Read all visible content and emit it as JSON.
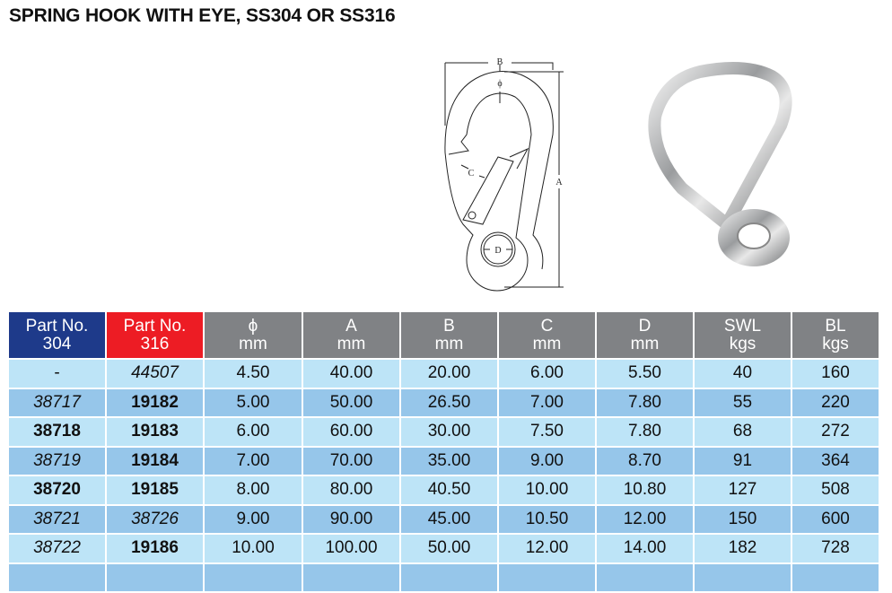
{
  "title": "SPRING HOOK WITH EYE, SS304 OR SS316",
  "diagram": {
    "labels": {
      "b": "B",
      "phi": "ϕ",
      "a": "A",
      "c": "C",
      "d": "D"
    }
  },
  "colors": {
    "header_304": "#1e3a8a",
    "header_316": "#ed1c24",
    "header_other": "#808285",
    "row_light": "#bde4f7",
    "row_dark": "#96c6ea"
  },
  "table": {
    "headers": [
      {
        "line1": "Part No.",
        "line2": "304"
      },
      {
        "line1": "Part No.",
        "line2": "316"
      },
      {
        "line1": "ϕ",
        "line2": "mm"
      },
      {
        "line1": "A",
        "line2": "mm"
      },
      {
        "line1": "B",
        "line2": "mm"
      },
      {
        "line1": "C",
        "line2": "mm"
      },
      {
        "line1": "D",
        "line2": "mm"
      },
      {
        "line1": "SWL",
        "line2": "kgs"
      },
      {
        "line1": "BL",
        "line2": "kgs"
      }
    ],
    "rows": [
      [
        "-",
        "44507",
        "4.50",
        "40.00",
        "20.00",
        "6.00",
        "5.50",
        "40",
        "160"
      ],
      [
        "38717",
        "19182",
        "5.00",
        "50.00",
        "26.50",
        "7.00",
        "7.80",
        "55",
        "220"
      ],
      [
        "38718",
        "19183",
        "6.00",
        "60.00",
        "30.00",
        "7.50",
        "7.80",
        "68",
        "272"
      ],
      [
        "38719",
        "19184",
        "7.00",
        "70.00",
        "35.00",
        "9.00",
        "8.70",
        "91",
        "364"
      ],
      [
        "38720",
        "19185",
        "8.00",
        "80.00",
        "40.50",
        "10.00",
        "10.80",
        "127",
        "508"
      ],
      [
        "38721",
        "38726",
        "9.00",
        "90.00",
        "45.00",
        "10.50",
        "12.00",
        "150",
        "600"
      ],
      [
        "38722",
        "19186",
        "10.00",
        "100.00",
        "50.00",
        "12.00",
        "14.00",
        "182",
        "728"
      ]
    ],
    "part_styles": [
      [
        "",
        "i"
      ],
      [
        "i",
        "b"
      ],
      [
        "b",
        "b"
      ],
      [
        "i",
        "b"
      ],
      [
        "b",
        "b"
      ],
      [
        "i",
        "i"
      ],
      [
        "i",
        "b"
      ]
    ]
  }
}
